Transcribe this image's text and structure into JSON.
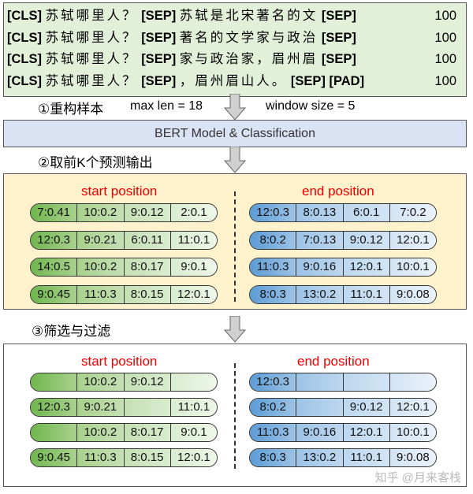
{
  "sequences": [
    {
      "cls": "[CLS]",
      "question": "苏轼哪里人？",
      "sep1": "[SEP]",
      "context": "苏轼是北宋著名的文",
      "tail": "[SEP]",
      "count": "100"
    },
    {
      "cls": "[CLS]",
      "question": "苏轼哪里人？",
      "sep1": "[SEP]",
      "context": "著名的文学家与政治",
      "tail": "[SEP]",
      "count": "100"
    },
    {
      "cls": "[CLS]",
      "question": "苏轼哪里人？",
      "sep1": "[SEP]",
      "context": "家与政治家，眉州眉",
      "tail": "[SEP]",
      "count": "100"
    },
    {
      "cls": "[CLS]",
      "question": "苏轼哪里人？",
      "sep1": "[SEP]",
      "context": "，眉州眉山人。",
      "tail": "[SEP] [PAD]",
      "count": "100"
    }
  ],
  "step1": {
    "label": "①重构样本",
    "max_len": "max len = 18",
    "window": "window size = 5"
  },
  "model": "BERT Model & Classification",
  "step2": "②取前K个预测输出",
  "step3": "③筛选与过滤",
  "topk": {
    "start_header": "start position",
    "end_header": "end position",
    "start": [
      [
        "7:0.41",
        "10:0.2",
        "9:0.12",
        "2:0.1"
      ],
      [
        "12:0.3",
        "9:0.21",
        "6:0.11",
        "11:0.1"
      ],
      [
        "14:0.5",
        "10:0.2",
        "8:0.17",
        "9:0.1"
      ],
      [
        "9:0.45",
        "11:0.3",
        "8:0.15",
        "12:0.1"
      ]
    ],
    "end": [
      [
        "12:0.3",
        "8:0.13",
        "6:0.1",
        "7:0.2"
      ],
      [
        "8:0.2",
        "7:0.13",
        "9:0.12",
        "12:0.1"
      ],
      [
        "11:0.3",
        "9:0.16",
        "12:0.1",
        "10:0.1"
      ],
      [
        "8:0.3",
        "13:0.2",
        "11:0.1",
        "9:0.08"
      ]
    ]
  },
  "filtered": {
    "start_header": "start position",
    "end_header": "end position",
    "start": [
      [
        "",
        "10:0.2",
        "9:0.12",
        ""
      ],
      [
        "12:0.3",
        "9:0.21",
        "",
        "11:0.1"
      ],
      [
        "",
        "10:0.2",
        "8:0.17",
        "9:0.1"
      ],
      [
        "9:0.45",
        "11:0.3",
        "8:0.15",
        "12:0.1"
      ]
    ],
    "end": [
      [
        "12:0.3",
        "",
        "",
        ""
      ],
      [
        "8:0.2",
        "",
        "9:0.12",
        "12:0.1"
      ],
      [
        "11:0.3",
        "9:0.16",
        "12:0.1",
        "10:0.1"
      ],
      [
        "8:0.3",
        "13:0.2",
        "11:0.1",
        "9:0.08"
      ]
    ]
  },
  "watermark": "知乎 @月来客栈"
}
